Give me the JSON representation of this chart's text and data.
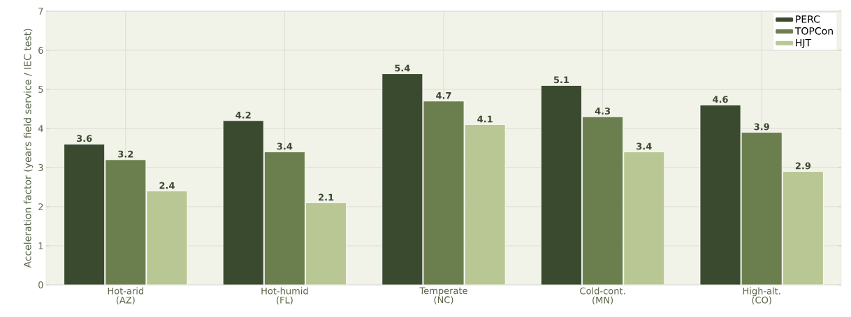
{
  "chart_data": {
    "type": "bar",
    "ylabel": "Acceleration factor (years field service / IEC test)",
    "categories": [
      "Hot-arid (AZ)",
      "Hot-humid (FL)",
      "Temperate (NC)",
      "Cold-cont. (MN)",
      "High-alt. (CO)"
    ],
    "series": [
      {
        "name": "PERC",
        "color": "#3a4a2f",
        "values": [
          3.6,
          4.2,
          5.4,
          5.1,
          4.6
        ]
      },
      {
        "name": "TOPCon",
        "color": "#6b7f4e",
        "values": [
          3.2,
          3.4,
          4.7,
          4.3,
          3.9
        ]
      },
      {
        "name": "HJT",
        "color": "#b8c794",
        "values": [
          2.4,
          2.1,
          4.1,
          3.4,
          2.9
        ]
      }
    ],
    "ylim": [
      0,
      7
    ],
    "yticks": [
      0,
      1,
      2,
      3,
      4,
      5,
      6,
      7
    ],
    "grid": true,
    "legend": "top right",
    "data_labels": true
  }
}
